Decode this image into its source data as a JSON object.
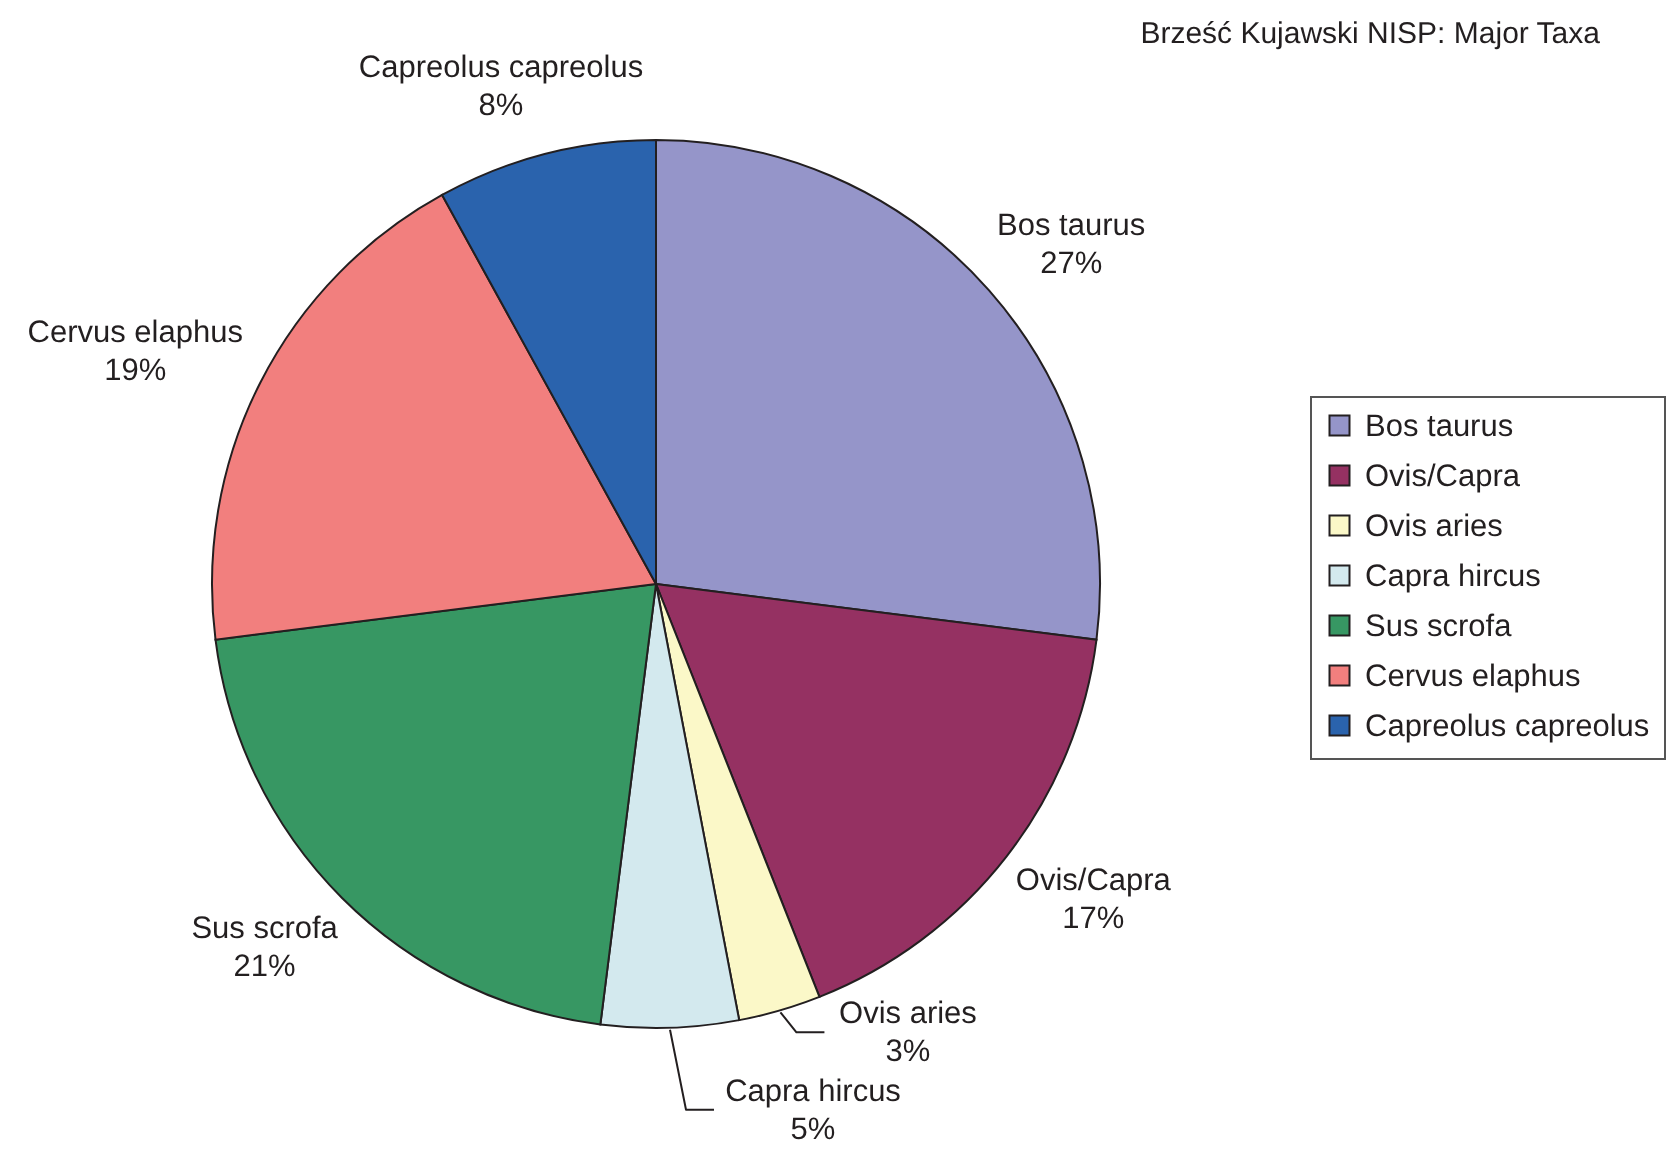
{
  "chart_data": {
    "type": "pie",
    "title": "Brześć Kujawski NISP: Major Taxa",
    "categories": [
      "Bos taurus",
      "Ovis/Capra",
      "Ovis aries",
      "Capra hircus",
      "Sus scrofa",
      "Cervus elaphus",
      "Capreolus capreolus"
    ],
    "values": [
      27,
      17,
      3,
      5,
      21,
      19,
      8
    ],
    "value_labels": [
      "27%",
      "17%",
      "3%",
      "5%",
      "21%",
      "19%",
      "8%"
    ],
    "colors": [
      "#9595c9",
      "#953162",
      "#fbf8c8",
      "#d3e9ee",
      "#379763",
      "#f27f7e",
      "#2a63ad"
    ],
    "legend": "right"
  }
}
